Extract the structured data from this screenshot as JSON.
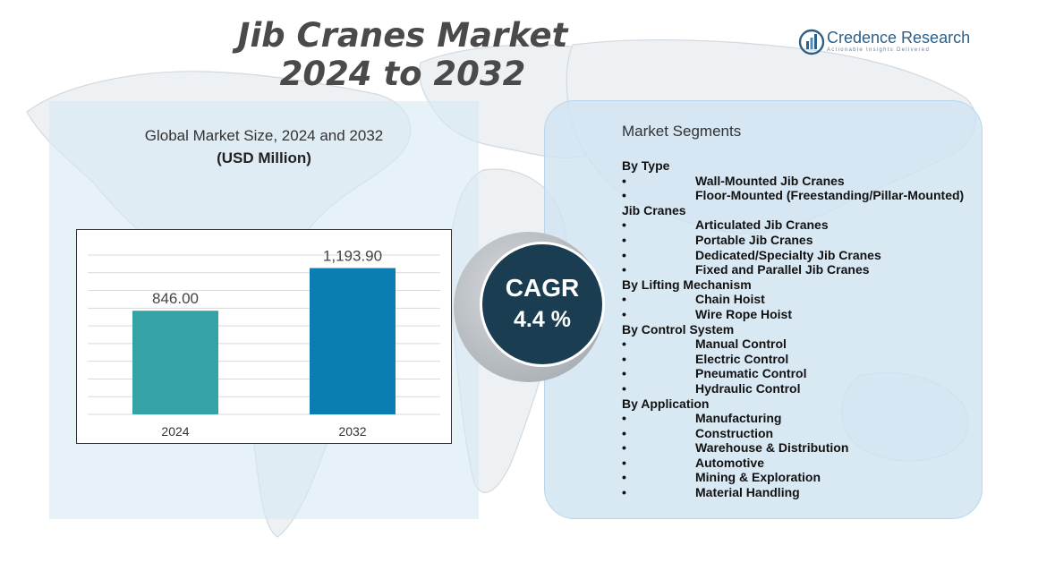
{
  "header": {
    "title_line1": "Jib Cranes Market",
    "title_line2": "2024 to 2032"
  },
  "logo": {
    "icon": "bar-chart-logo-icon",
    "name": "Credence Research",
    "tagline": "Actionable Insights Delivered"
  },
  "left": {
    "subtitle": "Global Market Size,  2024 and 2032",
    "units": "(USD Million)"
  },
  "chart_data": {
    "type": "bar",
    "categories": [
      "2024",
      "2032"
    ],
    "values": [
      846.0,
      1193.9
    ],
    "value_labels": [
      "846.00",
      "1,193.90"
    ],
    "colors": [
      "#35a3a5",
      "#0a7eb3"
    ],
    "title": "Global Market Size,  2024 and 2032",
    "ylabel": "(USD Million)",
    "grid": true
  },
  "cagr": {
    "label": "CAGR",
    "value": "4.4 %"
  },
  "segments": {
    "title": "Market Segments",
    "bullet": "•",
    "rows": [
      {
        "kind": "heading",
        "text": "By Type"
      },
      {
        "kind": "item",
        "text": "Wall-Mounted Jib Cranes"
      },
      {
        "kind": "item",
        "text": "Floor-Mounted (Freestanding/Pillar-Mounted)"
      },
      {
        "kind": "heading",
        "text": "Jib Cranes"
      },
      {
        "kind": "item",
        "text": "Articulated Jib Cranes"
      },
      {
        "kind": "item",
        "text": "Portable Jib Cranes"
      },
      {
        "kind": "item",
        "text": "Dedicated/Specialty Jib Cranes"
      },
      {
        "kind": "item",
        "text": "Fixed and Parallel Jib Cranes"
      },
      {
        "kind": "heading",
        "text": "By Lifting Mechanism"
      },
      {
        "kind": "item",
        "text": "Chain Hoist"
      },
      {
        "kind": "item",
        "text": "Wire Rope Hoist"
      },
      {
        "kind": "heading",
        "text": "By Control System"
      },
      {
        "kind": "item",
        "text": "Manual Control"
      },
      {
        "kind": "item",
        "text": "Electric  Control"
      },
      {
        "kind": "item",
        "text": "Pneumatic Control"
      },
      {
        "kind": "item",
        "text": "Hydraulic Control"
      },
      {
        "kind": "heading",
        "text": "By Application"
      },
      {
        "kind": "item",
        "text": "Manufacturing"
      },
      {
        "kind": "item",
        "text": "Construction"
      },
      {
        "kind": "item",
        "text": "Warehouse & Distribution"
      },
      {
        "kind": "item",
        "text": "Automotive"
      },
      {
        "kind": "item",
        "text": "Mining & Exploration"
      },
      {
        "kind": "item",
        "text": "Material Handling"
      }
    ]
  }
}
